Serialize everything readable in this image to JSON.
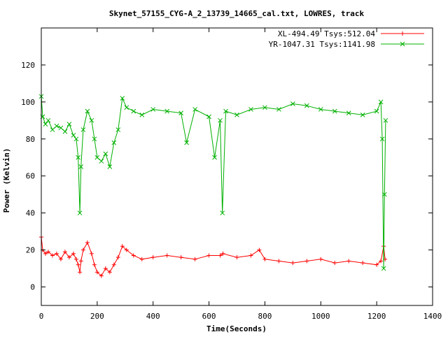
{
  "chart_data": {
    "type": "line",
    "title": "Skynet_57155_CYG-A_2_13739_14665_cal.txt, LOWRES, track",
    "xlabel": "Time(Seconds)",
    "ylabel": "Power (Kelvin)",
    "xlim": [
      0,
      1400
    ],
    "ylim": [
      -10,
      140
    ],
    "xticks": [
      0,
      200,
      400,
      600,
      800,
      1000,
      1200,
      1400
    ],
    "yticks": [
      0,
      20,
      40,
      60,
      80,
      100,
      120
    ],
    "xtick_labels": [
      "0",
      "200",
      "400",
      "600",
      "800",
      "1000",
      "1200",
      "1400"
    ],
    "ytick_labels": [
      "0",
      "20",
      "40",
      "60",
      "80",
      "100",
      "120"
    ],
    "grid": false,
    "legend_position": "top-right",
    "series": [
      {
        "name": "XL-494.49 Tsys:512.04",
        "color": "#ff0000",
        "marker": "plus",
        "x": [
          0,
          5,
          15,
          25,
          40,
          55,
          70,
          85,
          100,
          115,
          125,
          132,
          138,
          142,
          150,
          165,
          180,
          190,
          200,
          215,
          230,
          245,
          260,
          275,
          290,
          305,
          330,
          360,
          400,
          450,
          500,
          550,
          600,
          640,
          650,
          700,
          750,
          780,
          800,
          850,
          900,
          950,
          1000,
          1050,
          1100,
          1150,
          1200,
          1215,
          1225,
          1230
        ],
        "y": [
          27,
          20,
          18,
          19,
          17,
          18,
          15,
          19,
          16,
          18,
          15,
          12,
          8,
          14,
          20,
          24,
          18,
          12,
          8,
          6,
          10,
          8,
          12,
          16,
          22,
          20,
          17,
          15,
          16,
          17,
          16,
          15,
          17,
          17,
          18,
          16,
          17,
          20,
          15,
          14,
          13,
          14,
          15,
          13,
          14,
          13,
          12,
          14,
          22,
          15
        ]
      },
      {
        "name": "YR-1047.31 Tsys:1141.98",
        "color": "#00b000",
        "marker": "cross",
        "x": [
          0,
          5,
          15,
          25,
          40,
          55,
          70,
          85,
          100,
          115,
          125,
          132,
          138,
          142,
          150,
          165,
          180,
          190,
          200,
          215,
          230,
          245,
          260,
          275,
          290,
          305,
          330,
          360,
          400,
          450,
          500,
          520,
          550,
          600,
          620,
          640,
          648,
          660,
          700,
          750,
          800,
          850,
          900,
          950,
          1000,
          1050,
          1100,
          1150,
          1200,
          1215,
          1220,
          1225,
          1228,
          1232
        ],
        "y": [
          103,
          92,
          88,
          90,
          85,
          87,
          86,
          84,
          88,
          82,
          80,
          70,
          40,
          65,
          85,
          95,
          90,
          80,
          70,
          68,
          72,
          65,
          78,
          85,
          102,
          97,
          95,
          93,
          96,
          95,
          94,
          78,
          96,
          92,
          70,
          90,
          40,
          95,
          93,
          96,
          97,
          96,
          99,
          98,
          96,
          95,
          94,
          93,
          95,
          100,
          80,
          10,
          50,
          90
        ]
      }
    ]
  }
}
